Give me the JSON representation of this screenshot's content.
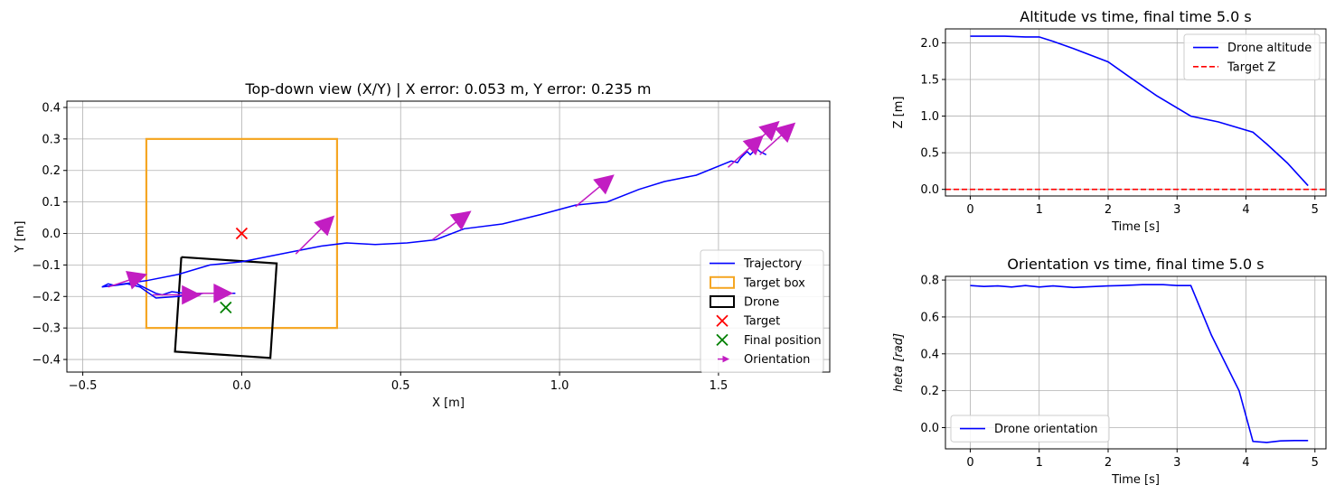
{
  "figure": {
    "bg": "#ffffff"
  },
  "chart_data": [
    {
      "id": "topdown",
      "type": "line",
      "title": "Top-down view (X/Y) | X error: 0.053 m, Y error: 0.235 m",
      "xlabel": "X [m]",
      "ylabel": "Y [m]",
      "xlim": [
        -0.55,
        1.85
      ],
      "ylim": [
        -0.44,
        0.42
      ],
      "xticks": [
        -0.5,
        0,
        0.5,
        1,
        1.5
      ],
      "xtick_labels": [
        "−0.5",
        "0.0",
        "0.5",
        "1.0",
        "1.5"
      ],
      "yticks": [
        -0.4,
        -0.3,
        -0.2,
        -0.1,
        0.0,
        0.1,
        0.2,
        0.3,
        0.4
      ],
      "ytick_labels": [
        "−0.4",
        "−0.3",
        "−0.2",
        "−0.1",
        "0.0",
        "0.1",
        "0.2",
        "0.3",
        "0.4"
      ],
      "grid": true,
      "legend_position": "lower-right",
      "trajectory": {
        "name": "Trajectory",
        "color": "#0000ff",
        "x": [
          -0.44,
          -0.42,
          -0.4,
          -0.37,
          -0.33,
          -0.31,
          -0.27,
          -0.25,
          -0.22,
          -0.18,
          -0.12,
          -0.08,
          -0.04,
          -0.02,
          -0.03,
          -0.12,
          -0.2,
          -0.27,
          -0.32,
          -0.36,
          -0.4,
          -0.44,
          -0.3,
          -0.2,
          -0.1,
          0.0,
          0.15,
          0.25,
          0.33,
          0.42,
          0.52,
          0.61,
          0.7,
          0.82,
          0.94,
          1.05,
          1.15,
          1.25,
          1.33,
          1.43,
          1.54,
          1.56,
          1.57,
          1.58,
          1.59,
          1.6,
          1.61,
          1.62,
          1.63,
          1.65
        ],
        "y": [
          -0.17,
          -0.16,
          -0.165,
          -0.16,
          -0.16,
          -0.17,
          -0.19,
          -0.195,
          -0.185,
          -0.19,
          -0.19,
          -0.19,
          -0.19,
          -0.19,
          -0.19,
          -0.19,
          -0.2,
          -0.205,
          -0.17,
          -0.16,
          -0.165,
          -0.17,
          -0.15,
          -0.13,
          -0.1,
          -0.09,
          -0.06,
          -0.04,
          -0.03,
          -0.035,
          -0.03,
          -0.02,
          0.015,
          0.03,
          0.06,
          0.09,
          0.1,
          0.14,
          0.165,
          0.185,
          0.23,
          0.225,
          0.24,
          0.25,
          0.26,
          0.25,
          0.26,
          0.27,
          0.26,
          0.25
        ]
      },
      "target_box": {
        "name": "Target box",
        "color": "#f5a623",
        "x": [
          -0.3,
          0.3
        ],
        "y": [
          -0.3,
          0.3
        ]
      },
      "drone": {
        "name": "Drone",
        "color": "#000000",
        "x": [
          -0.19,
          0.11,
          0.09,
          -0.21,
          -0.19
        ],
        "y": [
          -0.075,
          -0.095,
          -0.395,
          -0.375,
          -0.075
        ]
      },
      "target": {
        "name": "Target",
        "color": "#ff0000",
        "x": 0.0,
        "y": 0.0
      },
      "final_position": {
        "name": "Final position",
        "color": "#008000",
        "x": -0.05,
        "y": -0.235
      },
      "orientation": {
        "name": "Orientation",
        "color": "#c21dc2",
        "x": [
          -0.42,
          -0.28,
          -0.18,
          0.17,
          0.6,
          1.05,
          1.53,
          1.58,
          1.63
        ],
        "y": [
          -0.17,
          -0.195,
          -0.19,
          -0.065,
          -0.02,
          0.085,
          0.21,
          0.255,
          0.25
        ],
        "u": [
          0.12,
          0.15,
          0.15,
          0.12,
          0.12,
          0.12,
          0.11,
          0.11,
          0.11
        ],
        "v": [
          0.04,
          0.0,
          0.0,
          0.12,
          0.09,
          0.1,
          0.1,
          0.1,
          0.1
        ]
      }
    },
    {
      "id": "altitude",
      "type": "line",
      "title": "Altitude vs time, final time 5.0 s",
      "xlabel": "Time [s]",
      "ylabel": "Z [m]",
      "xlim": [
        -0.36,
        5.16
      ],
      "ylim": [
        -0.09,
        2.19
      ],
      "xticks": [
        0,
        1,
        2,
        3,
        4,
        5
      ],
      "xtick_labels": [
        "0",
        "1",
        "2",
        "3",
        "4",
        "5"
      ],
      "yticks": [
        0.0,
        0.5,
        1.0,
        1.5,
        2.0
      ],
      "ytick_labels": [
        "0.0",
        "0.5",
        "1.0",
        "1.5",
        "2.0"
      ],
      "grid": true,
      "legend_position": "top-right",
      "series": [
        {
          "name": "Drone altitude",
          "color": "#0000ff",
          "style": "solid",
          "x": [
            0.0,
            0.2,
            0.5,
            0.8,
            1.0,
            1.2,
            1.5,
            2.0,
            2.3,
            2.7,
            3.2,
            3.6,
            4.1,
            4.3,
            4.6,
            4.9
          ],
          "y": [
            2.09,
            2.09,
            2.09,
            2.08,
            2.08,
            2.02,
            1.92,
            1.74,
            1.54,
            1.28,
            1.0,
            0.92,
            0.78,
            0.62,
            0.36,
            0.05
          ]
        },
        {
          "name": "Target Z",
          "color": "#ff0000",
          "style": "dashed",
          "x": [
            -0.36,
            5.16
          ],
          "y": [
            0.0,
            0.0
          ]
        }
      ]
    },
    {
      "id": "orientation",
      "type": "line",
      "title": "Orientation vs time, final time 5.0 s",
      "xlabel": "Time [s]",
      "ylabel": "heta [rad]",
      "xlim": [
        -0.36,
        5.16
      ],
      "ylim": [
        -0.115,
        0.82
      ],
      "xticks": [
        0,
        1,
        2,
        3,
        4,
        5
      ],
      "xtick_labels": [
        "0",
        "1",
        "2",
        "3",
        "4",
        "5"
      ],
      "yticks": [
        0.0,
        0.2,
        0.4,
        0.6,
        0.8
      ],
      "ytick_labels": [
        "0.0",
        "0.2",
        "0.4",
        "0.6",
        "0.8"
      ],
      "grid": true,
      "legend_position": "bottom-left",
      "series": [
        {
          "name": "Drone orientation",
          "color": "#0000ff",
          "style": "solid",
          "x": [
            0.0,
            0.2,
            0.4,
            0.6,
            0.8,
            1.0,
            1.2,
            1.5,
            2.0,
            2.2,
            2.5,
            2.8,
            3.0,
            3.2,
            3.5,
            3.9,
            4.1,
            4.3,
            4.5,
            4.7,
            4.9
          ],
          "y": [
            0.77,
            0.765,
            0.768,
            0.762,
            0.77,
            0.762,
            0.768,
            0.76,
            0.768,
            0.77,
            0.775,
            0.775,
            0.77,
            0.77,
            0.5,
            0.2,
            -0.075,
            -0.08,
            -0.072,
            -0.07,
            -0.07
          ]
        }
      ]
    }
  ]
}
